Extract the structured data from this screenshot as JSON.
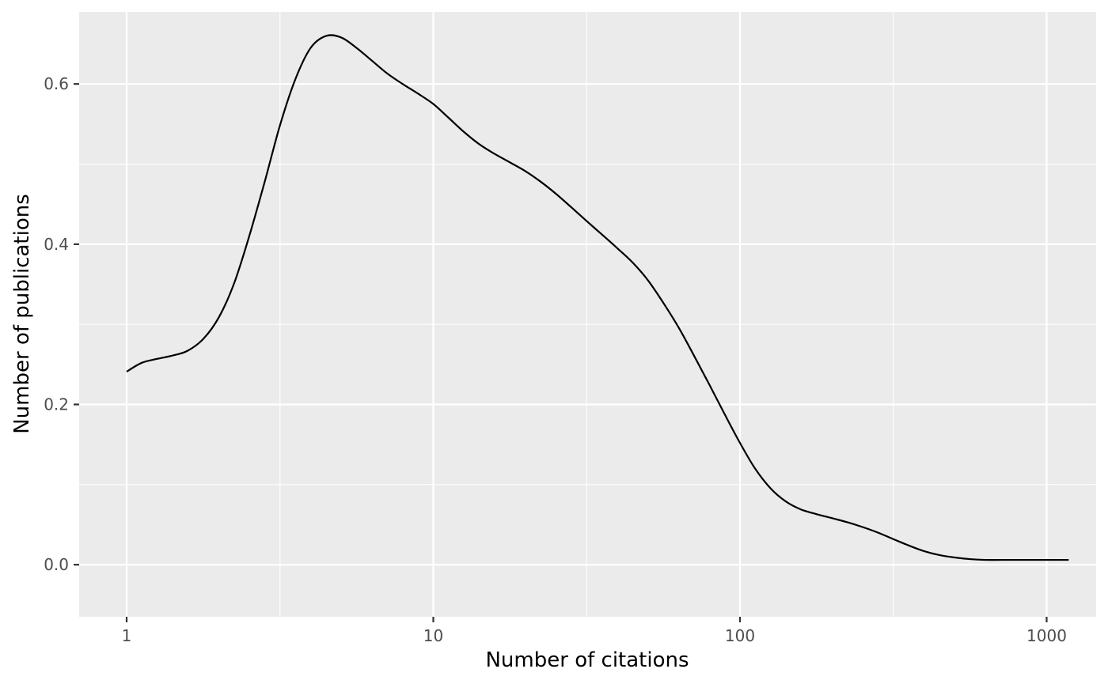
{
  "chart_data": {
    "type": "line",
    "xlabel": "Number of citations",
    "ylabel": "Number of publications",
    "x_scale": "log10",
    "xlim": [
      0.7,
      1450
    ],
    "ylim": [
      -0.065,
      0.69
    ],
    "x_ticks": [
      {
        "value": 1,
        "label": "1"
      },
      {
        "value": 10,
        "label": "10"
      },
      {
        "value": 100,
        "label": "100"
      },
      {
        "value": 1000,
        "label": "1000"
      }
    ],
    "y_ticks": [
      {
        "value": 0.0,
        "label": "0.0"
      },
      {
        "value": 0.2,
        "label": "0.2"
      },
      {
        "value": 0.4,
        "label": "0.4"
      },
      {
        "value": 0.6,
        "label": "0.6"
      }
    ],
    "grid": true,
    "background": "#ebebeb",
    "grid_color": "#ffffff",
    "line_color": "#000000",
    "series": [
      {
        "x": [
          1,
          1.12,
          1.26,
          1.41,
          1.58,
          1.78,
          2.0,
          2.24,
          2.51,
          2.82,
          3.16,
          3.55,
          3.98,
          4.47,
          5.01,
          5.62,
          6.31,
          7.08,
          7.94,
          8.91,
          10.0,
          11.2,
          12.6,
          14.1,
          15.8,
          17.8,
          20.0,
          22.4,
          25.1,
          28.2,
          31.6,
          35.5,
          39.8,
          44.7,
          50.1,
          56.2,
          63.1,
          70.8,
          79.4,
          89.1,
          100,
          112,
          126,
          141,
          158,
          178,
          200,
          224,
          251,
          282,
          316,
          355,
          398,
          447,
          501,
          562,
          631,
          708,
          794,
          891,
          1000,
          1122,
          1180
        ],
        "y": [
          0.241,
          0.252,
          0.257,
          0.261,
          0.267,
          0.282,
          0.309,
          0.351,
          0.41,
          0.478,
          0.548,
          0.606,
          0.645,
          0.66,
          0.658,
          0.645,
          0.629,
          0.613,
          0.6,
          0.588,
          0.575,
          0.558,
          0.54,
          0.525,
          0.513,
          0.502,
          0.491,
          0.478,
          0.463,
          0.446,
          0.429,
          0.412,
          0.395,
          0.377,
          0.355,
          0.327,
          0.296,
          0.261,
          0.225,
          0.188,
          0.152,
          0.12,
          0.095,
          0.079,
          0.069,
          0.063,
          0.058,
          0.053,
          0.047,
          0.04,
          0.032,
          0.024,
          0.017,
          0.012,
          0.009,
          0.007,
          0.006,
          0.006,
          0.006,
          0.006,
          0.006,
          0.006,
          0.006
        ]
      }
    ]
  }
}
